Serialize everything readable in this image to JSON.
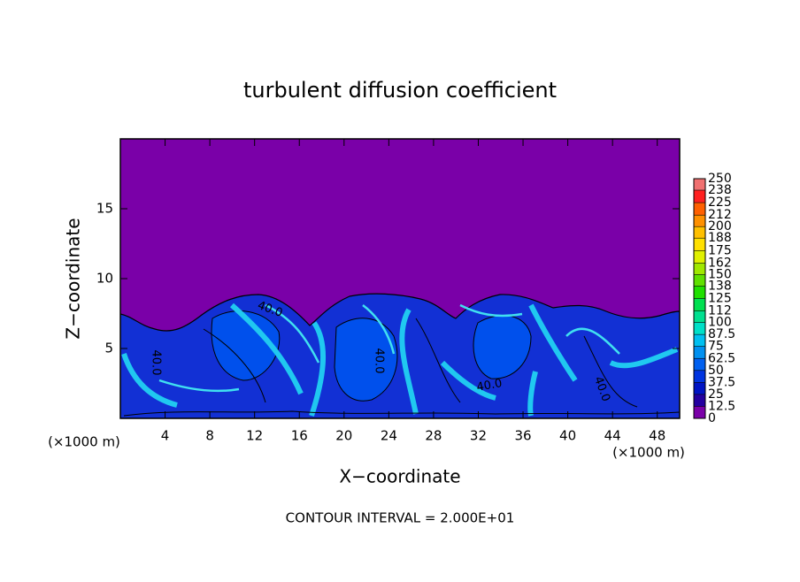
{
  "chart_data": {
    "type": "contour",
    "title": "turbulent diffusion coefficient",
    "xlabel": "X−coordinate",
    "ylabel": "Z−coordinate",
    "x_unit": "(×1000 m)",
    "footer": "CONTOUR INTERVAL = 2.000E+01",
    "xlim": [
      0,
      50
    ],
    "ylim": [
      0,
      20
    ],
    "xticks": [
      4,
      8,
      12,
      16,
      20,
      24,
      28,
      32,
      36,
      40,
      44,
      48
    ],
    "yticks": [
      5,
      10,
      15
    ],
    "contour_labels": [
      "40.0",
      "40.0",
      "40.0",
      "40.0",
      "40.0"
    ],
    "colorbar": {
      "ticks": [
        0,
        12.5,
        25,
        37.5,
        50,
        62.5,
        75,
        87.5,
        100,
        112,
        125,
        138,
        150,
        162,
        175,
        188,
        200,
        212,
        225,
        238,
        250
      ],
      "colors": [
        "#7a00a8",
        "#2400a0",
        "#0014c4",
        "#0034e0",
        "#0060f0",
        "#0090f0",
        "#00c0f0",
        "#00e0c8",
        "#00e090",
        "#00e050",
        "#20e000",
        "#60e000",
        "#a0e800",
        "#e0f000",
        "#ffe000",
        "#ffc000",
        "#ff9000",
        "#ff6000",
        "#ff2020",
        "#f07070"
      ]
    }
  }
}
